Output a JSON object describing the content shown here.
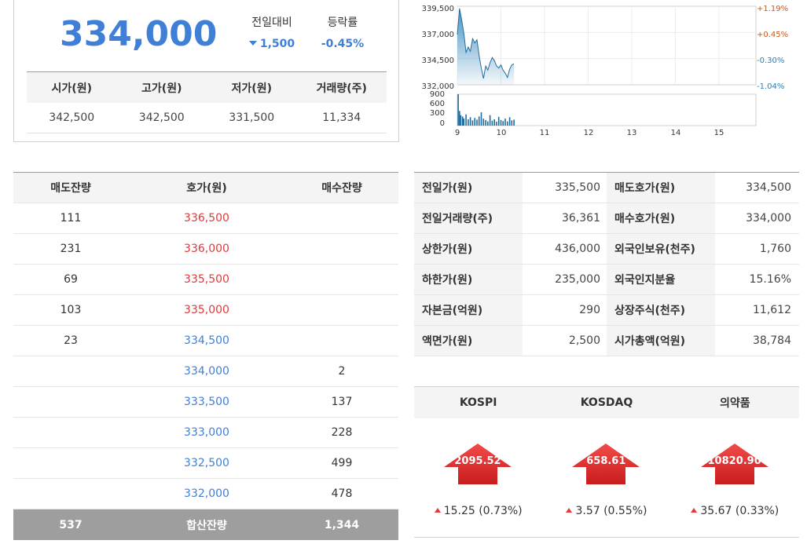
{
  "summary": {
    "price": "334,000",
    "change_label": "전일대비",
    "change_value": "1,500",
    "rate_label": "등락률",
    "rate_value": "-0.45%",
    "colors": {
      "down": "#3f7fd6",
      "up": "#e03a3a"
    }
  },
  "ohlc": {
    "headers": [
      "시가(원)",
      "고가(원)",
      "저가(원)",
      "거래량(주)"
    ],
    "values": [
      "342,500",
      "342,500",
      "331,500",
      "11,334"
    ]
  },
  "chart": {
    "price_ticks": [
      "339,500",
      "337,000",
      "334,500",
      "332,000"
    ],
    "rate_ticks": [
      "+1.19%",
      "+0.45%",
      "-0.30%",
      "-1.04%"
    ],
    "volume_ticks": [
      "900",
      "600",
      "300",
      "0"
    ],
    "time_ticks": [
      "9",
      "10",
      "11",
      "12",
      "13",
      "14",
      "15"
    ]
  },
  "chart_data": {
    "type": "line",
    "x_unit": "hour",
    "ylim": [
      332000,
      339500
    ],
    "price_series": [
      [
        9.0,
        336800
      ],
      [
        9.05,
        339300
      ],
      [
        9.1,
        338200
      ],
      [
        9.15,
        336900
      ],
      [
        9.2,
        335100
      ],
      [
        9.25,
        335600
      ],
      [
        9.3,
        335200
      ],
      [
        9.35,
        336400
      ],
      [
        9.4,
        336000
      ],
      [
        9.45,
        336300
      ],
      [
        9.5,
        334800
      ],
      [
        9.55,
        333600
      ],
      [
        9.6,
        332600
      ],
      [
        9.65,
        333800
      ],
      [
        9.7,
        333400
      ],
      [
        9.75,
        334100
      ],
      [
        9.8,
        334600
      ],
      [
        9.85,
        334300
      ],
      [
        9.9,
        333800
      ],
      [
        9.95,
        333600
      ],
      [
        10.0,
        333900
      ],
      [
        10.05,
        333400
      ],
      [
        10.1,
        333100
      ],
      [
        10.15,
        332700
      ],
      [
        10.2,
        333500
      ],
      [
        10.25,
        333900
      ],
      [
        10.3,
        334000
      ]
    ],
    "volume_ylim": [
      0,
      900
    ],
    "volume_series": [
      [
        9.02,
        900
      ],
      [
        9.05,
        420
      ],
      [
        9.08,
        300
      ],
      [
        9.12,
        260
      ],
      [
        9.15,
        200
      ],
      [
        9.2,
        320
      ],
      [
        9.25,
        180
      ],
      [
        9.3,
        240
      ],
      [
        9.35,
        150
      ],
      [
        9.4,
        220
      ],
      [
        9.45,
        170
      ],
      [
        9.5,
        260
      ],
      [
        9.55,
        380
      ],
      [
        9.6,
        200
      ],
      [
        9.65,
        160
      ],
      [
        9.7,
        120
      ],
      [
        9.75,
        300
      ],
      [
        9.8,
        140
      ],
      [
        9.85,
        180
      ],
      [
        9.9,
        110
      ],
      [
        9.95,
        250
      ],
      [
        10.0,
        160
      ],
      [
        10.05,
        130
      ],
      [
        10.1,
        200
      ],
      [
        10.15,
        120
      ],
      [
        10.2,
        240
      ],
      [
        10.25,
        150
      ],
      [
        10.3,
        170
      ]
    ]
  },
  "orderbook": {
    "headers": [
      "매도잔량",
      "호가(원)",
      "매수잔량"
    ],
    "rows": [
      {
        "sell": "111",
        "price": "336,500",
        "buy": "",
        "side": "ask"
      },
      {
        "sell": "231",
        "price": "336,000",
        "buy": "",
        "side": "ask"
      },
      {
        "sell": "69",
        "price": "335,500",
        "buy": "",
        "side": "ask"
      },
      {
        "sell": "103",
        "price": "335,000",
        "buy": "",
        "side": "ask"
      },
      {
        "sell": "23",
        "price": "334,500",
        "buy": "",
        "side": "bid"
      },
      {
        "sell": "",
        "price": "334,000",
        "buy": "2",
        "side": "bid"
      },
      {
        "sell": "",
        "price": "333,500",
        "buy": "137",
        "side": "bid"
      },
      {
        "sell": "",
        "price": "333,000",
        "buy": "228",
        "side": "bid"
      },
      {
        "sell": "",
        "price": "332,500",
        "buy": "499",
        "side": "bid"
      },
      {
        "sell": "",
        "price": "332,000",
        "buy": "478",
        "side": "bid"
      }
    ],
    "total": {
      "sell": "537",
      "label": "합산잔량",
      "buy": "1,344"
    }
  },
  "info": {
    "rows": [
      {
        "k1": "전일가(원)",
        "v1": "335,500",
        "k2": "매도호가(원)",
        "v2": "334,500"
      },
      {
        "k1": "전일거래량(주)",
        "v1": "36,361",
        "k2": "매수호가(원)",
        "v2": "334,000"
      },
      {
        "k1": "상한가(원)",
        "v1": "436,000",
        "k2": "외국인보유(천주)",
        "v2": "1,760"
      },
      {
        "k1": "하한가(원)",
        "v1": "235,000",
        "k2": "외국인지분율",
        "v2": "15.16%"
      },
      {
        "k1": "자본금(억원)",
        "v1": "290",
        "k2": "상장주식(천주)",
        "v2": "11,612"
      },
      {
        "k1": "액면가(원)",
        "v1": "2,500",
        "k2": "시가총액(억원)",
        "v2": "38,784"
      }
    ]
  },
  "indices": [
    {
      "name": "KOSPI",
      "value": "2095.52",
      "change": "15.25 (0.73%)"
    },
    {
      "name": "KOSDAQ",
      "value": "658.61",
      "change": "3.57 (0.55%)"
    },
    {
      "name": "의약품",
      "value": "10820.90",
      "change": "35.67 (0.33%)"
    }
  ]
}
